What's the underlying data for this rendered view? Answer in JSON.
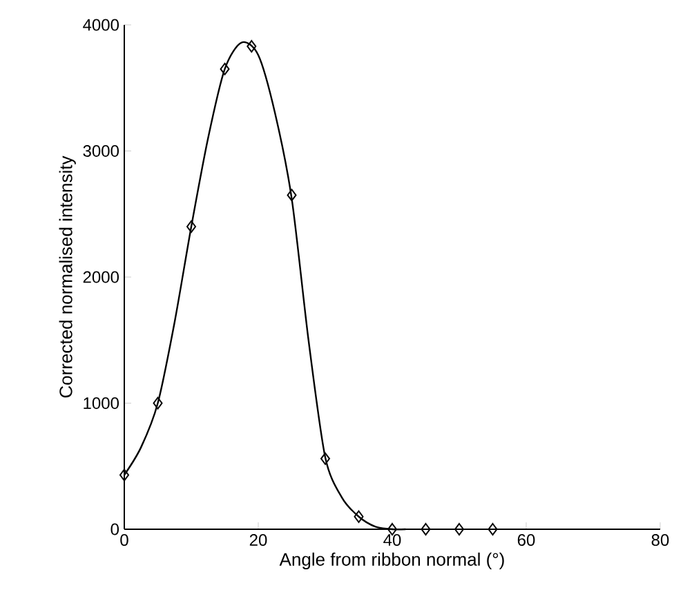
{
  "chart_data": {
    "type": "scatter",
    "xlabel": "Angle from ribbon normal (°)",
    "ylabel": "Corrected normalised intensity",
    "xlim": [
      0,
      80
    ],
    "ylim": [
      0,
      4000
    ],
    "xticks": [
      0,
      20,
      40,
      60,
      80
    ],
    "yticks": [
      0,
      1000,
      2000,
      3000,
      4000
    ],
    "grid": false,
    "marker": "diamond",
    "series": [
      {
        "type": "line",
        "color": "#000000",
        "marker": "none",
        "x": [
          0,
          2.5,
          5,
          7.5,
          10,
          12.5,
          15,
          17.5,
          20,
          22.5,
          25,
          27.5,
          30,
          32.5,
          35,
          37.5,
          40,
          42
        ],
        "values": [
          430,
          650,
          1000,
          1640,
          2400,
          3100,
          3650,
          3860,
          3760,
          3300,
          2620,
          1500,
          570,
          250,
          100,
          20,
          0,
          0
        ]
      },
      {
        "color": "#000000",
        "x": [
          0,
          5,
          10,
          15,
          19,
          25,
          30,
          35,
          40,
          45,
          50,
          55
        ],
        "values": [
          430,
          1000,
          2400,
          3650,
          3830,
          2650,
          560,
          100,
          0,
          0,
          0,
          0
        ]
      }
    ]
  }
}
